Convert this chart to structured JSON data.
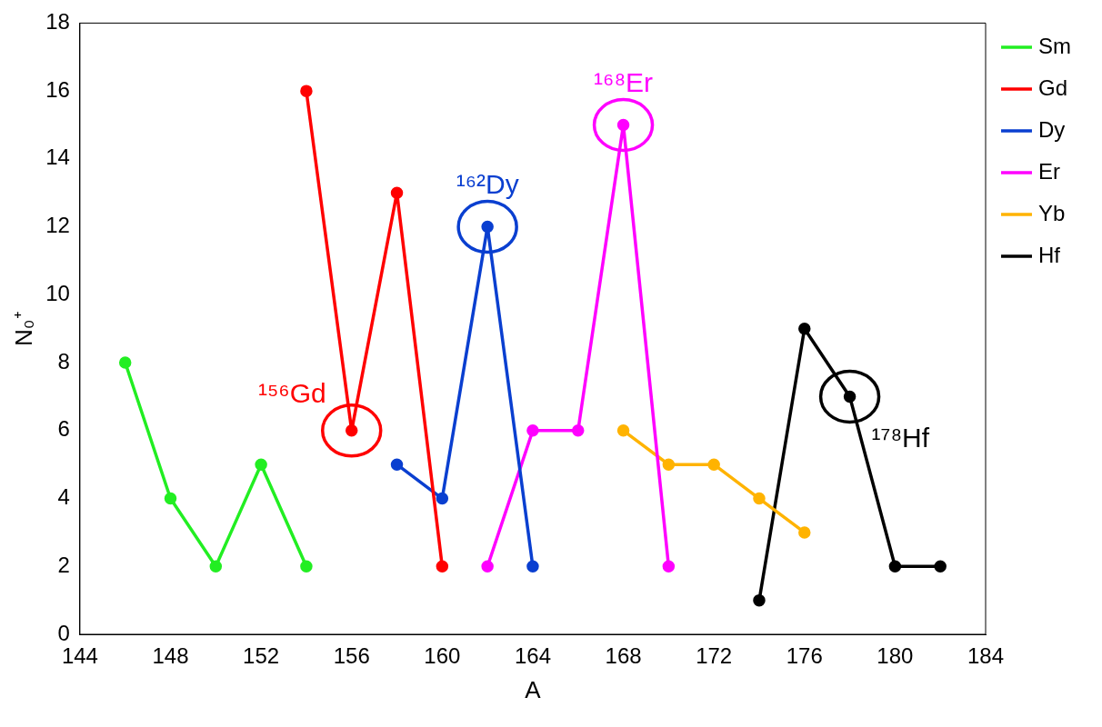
{
  "chart_data": {
    "type": "line",
    "xlabel": "A",
    "ylabel": "N₀⁺",
    "xlim": [
      144,
      184
    ],
    "xticks": [
      144,
      148,
      152,
      156,
      160,
      164,
      168,
      172,
      176,
      180,
      184
    ],
    "ylim": [
      0,
      18
    ],
    "yticks": [
      0,
      2,
      4,
      6,
      8,
      10,
      12,
      14,
      16,
      18
    ],
    "grid": false,
    "legend": "top right",
    "marker": "circle",
    "line_style": "solid",
    "series": [
      {
        "name": "Sm",
        "color": "#22ee22",
        "x": [
          146,
          148,
          150,
          152,
          154
        ],
        "values": [
          8,
          4,
          2,
          5,
          2
        ]
      },
      {
        "name": "Gd",
        "color": "#ff0000",
        "x": [
          154,
          156,
          158,
          160
        ],
        "values": [
          16,
          6,
          13,
          2
        ]
      },
      {
        "name": "Dy",
        "color": "#0a3fd0",
        "x": [
          158,
          160,
          162,
          164
        ],
        "values": [
          5,
          4,
          12,
          2
        ]
      },
      {
        "name": "Er",
        "color": "#ff00ff",
        "x": [
          162,
          164,
          166,
          168,
          170
        ],
        "values": [
          2,
          6,
          6,
          15,
          2
        ]
      },
      {
        "name": "Yb",
        "color": "#ffb300",
        "x": [
          168,
          170,
          172,
          174,
          176
        ],
        "values": [
          6,
          5,
          5,
          4,
          3
        ]
      },
      {
        "name": "Hf",
        "color": "#000000",
        "x": [
          174,
          176,
          178,
          180,
          182
        ],
        "values": [
          1,
          9,
          7,
          2,
          2
        ]
      }
    ],
    "annotations": [
      {
        "text": "¹⁵⁶Gd",
        "x": 156,
        "y": 6
      },
      {
        "text": "¹⁶²Dy",
        "x": 162,
        "y": 12
      },
      {
        "text": "¹⁶⁸Er",
        "x": 168,
        "y": 15
      },
      {
        "text": "¹⁷⁸Hf",
        "x": 178,
        "y": 7
      }
    ]
  }
}
